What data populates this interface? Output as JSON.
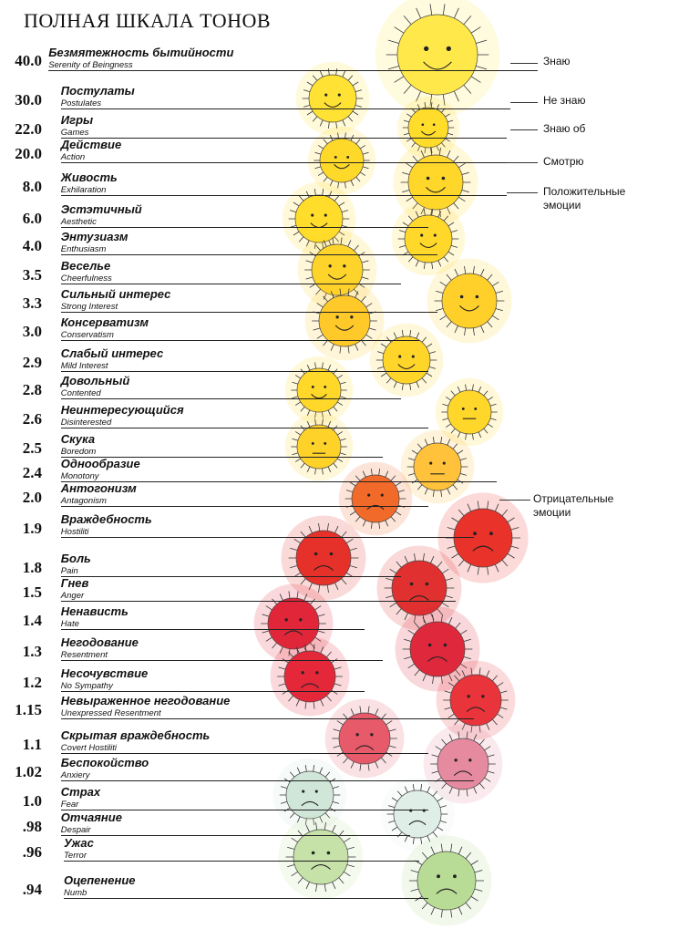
{
  "title": "ПОЛНАЯ ШКАЛА ТОНОВ",
  "tones": [
    {
      "value": "40.0",
      "ru": "Безмятежность бытийности",
      "en": "Serenity of Beingness",
      "color": "#ffe94a"
    },
    {
      "value": "30.0",
      "ru": "Постулаты",
      "en": "Postulates",
      "color": "#ffe233"
    },
    {
      "value": "22.0",
      "ru": "Игры",
      "en": "Games",
      "color": "#ffdd2a"
    },
    {
      "value": "20.0",
      "ru": "Действие",
      "en": "Action",
      "color": "#ffd92a"
    },
    {
      "value": "8.0",
      "ru": "Живость",
      "en": "Exhilaration",
      "color": "#ffd62a"
    },
    {
      "value": "6.0",
      "ru": "Эстэтичный",
      "en": "Aesthetic",
      "color": "#ffdd2a"
    },
    {
      "value": "4.0",
      "ru": "Энтузиазм",
      "en": "Enthusiasm",
      "color": "#ffd82a"
    },
    {
      "value": "3.5",
      "ru": "Веселье",
      "en": "Cheerfulness",
      "color": "#ffd42a"
    },
    {
      "value": "3.3",
      "ru": "Сильный интерес",
      "en": "Strong Interest",
      "color": "#ffd02a"
    },
    {
      "value": "3.0",
      "ru": "Консерватизм",
      "en": "Conservatism",
      "color": "#ffc92a"
    },
    {
      "value": "2.9",
      "ru": "Слабый интерес",
      "en": "Mild Interest",
      "color": "#ffd52a"
    },
    {
      "value": "2.8",
      "ru": "Довольный",
      "en": "Contented",
      "color": "#ffd82a"
    },
    {
      "value": "2.6",
      "ru": "Неинтересующийся",
      "en": "Disinterested",
      "color": "#ffd62a"
    },
    {
      "value": "2.5",
      "ru": "Скука",
      "en": "Boredom",
      "color": "#ffd22a"
    },
    {
      "value": "2.4",
      "ru": "Однообразие",
      "en": "Monotony",
      "color": "#ffc23a"
    },
    {
      "value": "2.0",
      "ru": "Антогонизм",
      "en": "Antagonism",
      "color": "#f26a2a"
    },
    {
      "value": "1.9",
      "ru": "Враждебность",
      "en": "Hostiliti",
      "color": "#e8322a"
    },
    {
      "value": "1.8",
      "ru": "Боль",
      "en": "Pain",
      "color": "#e6302a"
    },
    {
      "value": "1.5",
      "ru": "Гнев",
      "en": "Anger",
      "color": "#e0302f"
    },
    {
      "value": "1.4",
      "ru": "Ненависть",
      "en": "Hate",
      "color": "#e2263a"
    },
    {
      "value": "1.3",
      "ru": "Негодование",
      "en": "Resentment",
      "color": "#e0283c"
    },
    {
      "value": "1.2",
      "ru": "Несочувствие",
      "en": "No Sympathy",
      "color": "#e4283a"
    },
    {
      "value": "1.15",
      "ru": "Невыраженное негодование",
      "en": "Unexpressed Resentment",
      "color": "#e8343a"
    },
    {
      "value": "1.1",
      "ru": "Скрытая враждебность",
      "en": "Covert Hostiliti",
      "color": "#e65a6a"
    },
    {
      "value": "1.02",
      "ru": "Беспокойство",
      "en": "Anxiery",
      "color": "#e68aa0"
    },
    {
      "value": "1.0",
      "ru": "Страх",
      "en": "Fear",
      "color": "#cfe6d8"
    },
    {
      "value": ".98",
      "ru": "Отчаяние",
      "en": "Despair",
      "color": "#dfeee6"
    },
    {
      "value": ".96",
      "ru": "Ужас",
      "en": "Terror",
      "color": "#c6e2a8"
    },
    {
      "value": ".94",
      "ru": "Оцепенение",
      "en": "Numb",
      "color": "#b8dc96"
    }
  ],
  "side_labels": [
    {
      "text": "Знаю"
    },
    {
      "text": "Не знаю"
    },
    {
      "text": "Знаю об"
    },
    {
      "text": "Смотрю"
    },
    {
      "text": "Положительные"
    },
    {
      "text": "эмоции"
    },
    {
      "text": "Отрицательные"
    },
    {
      "text": "эмоции"
    }
  ]
}
